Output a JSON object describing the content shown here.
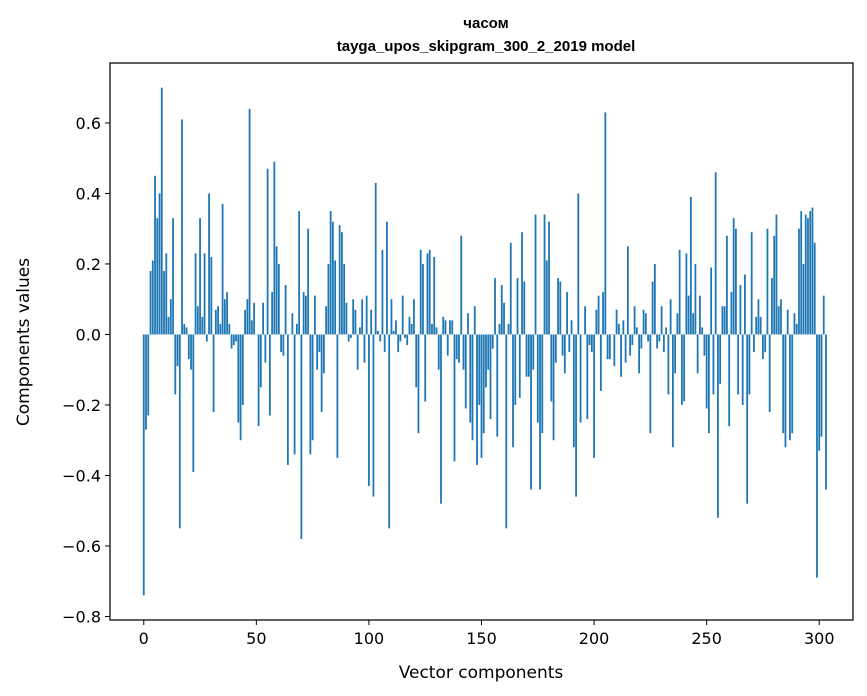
{
  "chart_data": {
    "type": "bar",
    "title_line1": "часом",
    "title_line2": "tayga_upos_skipgram_300_2_2019 model",
    "xlabel": "Vector components",
    "ylabel": "Components values",
    "xlim": [
      -15,
      315
    ],
    "ylim": [
      -0.81,
      0.77
    ],
    "xticks": [
      0,
      50,
      100,
      150,
      200,
      250,
      300
    ],
    "yticks": [
      -0.8,
      -0.6,
      -0.4,
      -0.2,
      0.0,
      0.2,
      0.4,
      0.6
    ],
    "ytick_labels": [
      "−0.8",
      "−0.6",
      "−0.4",
      "−0.2",
      "0.0",
      "0.2",
      "0.4",
      "0.6"
    ],
    "xtick_labels": [
      "0",
      "50",
      "100",
      "150",
      "200",
      "250",
      "300"
    ],
    "bar_color": "#1f77b4",
    "values": [
      -0.74,
      -0.27,
      -0.23,
      0.18,
      0.21,
      0.45,
      0.33,
      0.4,
      0.7,
      0.18,
      0.23,
      0.05,
      0.1,
      0.33,
      -0.17,
      -0.09,
      -0.55,
      0.61,
      0.03,
      0.02,
      -0.07,
      -0.1,
      -0.39,
      0.23,
      0.08,
      0.33,
      0.05,
      0.23,
      -0.02,
      0.4,
      0.22,
      -0.22,
      0.07,
      0.08,
      0.03,
      0.37,
      0.1,
      0.12,
      0.03,
      -0.04,
      -0.03,
      -0.02,
      -0.25,
      -0.3,
      -0.2,
      0.07,
      0.1,
      0.64,
      0.04,
      0.09,
      0.0,
      -0.26,
      -0.15,
      0.09,
      -0.08,
      0.47,
      -0.23,
      0.12,
      0.49,
      0.25,
      0.2,
      -0.05,
      -0.06,
      0.14,
      -0.37,
      0.0,
      0.06,
      -0.34,
      0.03,
      0.35,
      -0.58,
      0.12,
      0.11,
      0.3,
      -0.34,
      -0.3,
      0.11,
      -0.1,
      -0.05,
      -0.22,
      -0.11,
      0.08,
      0.2,
      0.35,
      0.32,
      0.21,
      -0.35,
      0.31,
      0.29,
      0.2,
      0.09,
      -0.02,
      -0.01,
      0.1,
      0.07,
      -0.1,
      0.02,
      0.1,
      -0.08,
      0.11,
      -0.43,
      0.07,
      -0.46,
      0.43,
      0.01,
      -0.02,
      0.24,
      -0.05,
      0.32,
      -0.55,
      0.1,
      0.01,
      0.04,
      -0.05,
      -0.02,
      0.11,
      -0.01,
      -0.03,
      0.05,
      0.03,
      0.1,
      -0.15,
      -0.28,
      0.24,
      0.2,
      -0.19,
      0.23,
      0.24,
      0.03,
      0.22,
      0.02,
      -0.1,
      -0.48,
      0.05,
      0.04,
      -0.06,
      0.04,
      0.04,
      -0.36,
      -0.07,
      -0.08,
      0.28,
      -0.1,
      -0.21,
      0.06,
      -0.25,
      -0.3,
      0.08,
      -0.37,
      -0.2,
      -0.35,
      -0.28,
      -0.15,
      -0.1,
      -0.24,
      -0.04,
      0.16,
      -0.29,
      0.03,
      0.14,
      0.09,
      -0.55,
      0.03,
      0.26,
      -0.32,
      -0.2,
      0.16,
      -0.18,
      0.29,
      0.15,
      -0.12,
      -0.12,
      -0.44,
      -0.1,
      0.34,
      -0.25,
      -0.44,
      -0.28,
      0.34,
      0.21,
      0.32,
      -0.19,
      -0.3,
      -0.08,
      0.16,
      0.15,
      -0.06,
      -0.11,
      0.12,
      -0.05,
      0.04,
      -0.32,
      -0.46,
      0.4,
      -0.25,
      0.0,
      0.08,
      -0.24,
      -0.03,
      -0.05,
      -0.35,
      0.07,
      0.11,
      -0.16,
      0.12,
      0.63,
      -0.07,
      -0.07,
      0.0,
      -0.09,
      0.07,
      0.03,
      -0.12,
      0.04,
      -0.08,
      0.25,
      -0.06,
      -0.03,
      0.08,
      0.02,
      -0.11,
      -0.04,
      0.07,
      0.06,
      -0.02,
      -0.28,
      0.15,
      0.2,
      -0.04,
      -0.02,
      0.08,
      -0.05,
      0.02,
      -0.17,
      0.1,
      -0.32,
      -0.11,
      0.06,
      0.24,
      -0.2,
      -0.19,
      0.23,
      0.11,
      0.39,
      0.06,
      0.2,
      -0.11,
      0.11,
      0.02,
      -0.06,
      -0.21,
      -0.28,
      0.19,
      -0.17,
      0.46,
      -0.52,
      -0.14,
      0.08,
      0.08,
      0.28,
      -0.26,
      0.12,
      0.33,
      0.3,
      -0.17,
      0.14,
      -0.2,
      0.17,
      -0.48,
      -0.17,
      0.29,
      -0.05,
      0.05,
      0.1,
      0.05,
      -0.07,
      -0.05,
      0.3,
      -0.22,
      0.16,
      0.28,
      0.34,
      0.08,
      0.1,
      -0.28,
      -0.32,
      0.07,
      -0.3,
      -0.28,
      0.06,
      0.03,
      0.3,
      0.35,
      0.2,
      0.34,
      0.33,
      0.35,
      0.36,
      0.26,
      -0.69,
      -0.33,
      -0.29,
      0.11,
      -0.44
    ]
  }
}
